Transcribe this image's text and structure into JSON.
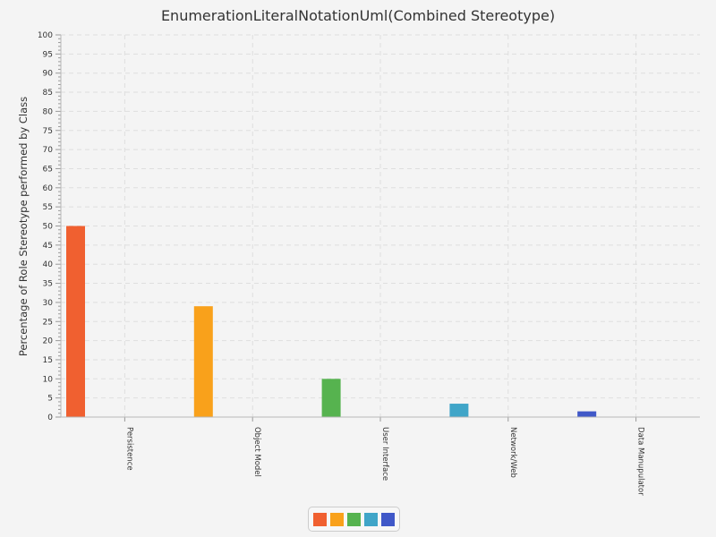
{
  "chart_data": {
    "type": "bar",
    "title": "EnumerationLiteralNotationUml(Combined Stereotype)",
    "xlabel": "",
    "ylabel": "Percentage of Role Stereotype performed by Class",
    "categories": [
      "Persistence",
      "Object Model",
      "User Interface",
      "Network/Web",
      "Data Manupulator"
    ],
    "values": [
      50,
      29,
      10,
      3.5,
      1.5
    ],
    "colors": [
      "#f06030",
      "#f9a11b",
      "#56b34f",
      "#40a5c8",
      "#4058c8"
    ],
    "ylim": [
      0,
      100
    ],
    "ytick_step": 5,
    "grid": true,
    "legend": {
      "placement": "bottom-center",
      "entries": [
        {
          "name": "",
          "color": "#f06030"
        },
        {
          "name": "",
          "color": "#f9a11b"
        },
        {
          "name": "",
          "color": "#56b34f"
        },
        {
          "name": "",
          "color": "#40a5c8"
        },
        {
          "name": "",
          "color": "#4058c8"
        }
      ]
    }
  }
}
